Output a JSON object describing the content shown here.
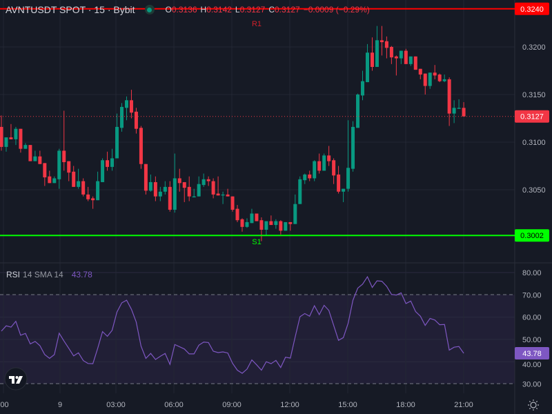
{
  "header": {
    "symbol": "AVNTUSDT SPOT · 15 · Bybit",
    "status_color": "#089981",
    "open_label": "O",
    "open": "0.3136",
    "high_label": "H",
    "high": "0.3142",
    "low_label": "L",
    "low": "0.3127",
    "close_label": "C",
    "close": "0.3127",
    "change": "−0.0009 (−0.29%)"
  },
  "indicator": {
    "name": "RSI",
    "params": "14 SMA 14",
    "value": "43.78"
  },
  "chart_data": [
    {
      "type": "candlestick",
      "interval": "15",
      "up_color": "#089981",
      "down_color": "#f23645",
      "ylim": [
        0.2997,
        0.325
      ],
      "y_ticks": [
        "0.3200",
        "0.3150",
        "0.3100",
        "0.3050"
      ],
      "x_ticks": [
        ":00",
        "9",
        "03:00",
        "06:00",
        "09:00",
        "12:00",
        "15:00",
        "18:00",
        "21:00"
      ],
      "grid": true,
      "last_price": {
        "value": 0.3127,
        "label": "0.3127",
        "color": "#f23645"
      },
      "levels": [
        {
          "name": "R1",
          "value": 0.324,
          "label": "0.3240",
          "color": "#ff0000"
        },
        {
          "name": "S1",
          "value": 0.3002,
          "label": "0.3002",
          "color": "#00ff00"
        }
      ],
      "candles": [
        [
          0.3116,
          0.3128,
          0.3091,
          0.3095
        ],
        [
          0.3095,
          0.3105,
          0.309,
          0.3105
        ],
        [
          0.3105,
          0.3119,
          0.3103,
          0.3103
        ],
        [
          0.3103,
          0.3116,
          0.3097,
          0.3114
        ],
        [
          0.3114,
          0.3114,
          0.3089,
          0.3093
        ],
        [
          0.3093,
          0.3099,
          0.3093,
          0.3097
        ],
        [
          0.3097,
          0.3097,
          0.308,
          0.308
        ],
        [
          0.308,
          0.3091,
          0.308,
          0.3085
        ],
        [
          0.3085,
          0.3091,
          0.3077,
          0.3077
        ],
        [
          0.3078,
          0.3078,
          0.3054,
          0.3063
        ],
        [
          0.3064,
          0.307,
          0.3057,
          0.3057
        ],
        [
          0.3057,
          0.3064,
          0.3057,
          0.3062
        ],
        [
          0.3061,
          0.3093,
          0.3051,
          0.3091
        ],
        [
          0.3091,
          0.3133,
          0.307,
          0.3079
        ],
        [
          0.308,
          0.308,
          0.3059,
          0.3068
        ],
        [
          0.3069,
          0.3075,
          0.3053,
          0.3053
        ],
        [
          0.3053,
          0.3072,
          0.3051,
          0.3059
        ],
        [
          0.3059,
          0.3062,
          0.3043,
          0.3045
        ],
        [
          0.3045,
          0.3053,
          0.3038,
          0.304
        ],
        [
          0.3041,
          0.3043,
          0.303,
          0.3039
        ],
        [
          0.3039,
          0.3069,
          0.3039,
          0.3059
        ],
        [
          0.3058,
          0.3083,
          0.3058,
          0.3081
        ],
        [
          0.3081,
          0.309,
          0.307,
          0.3074
        ],
        [
          0.3074,
          0.3093,
          0.307,
          0.3083
        ],
        [
          0.3083,
          0.313,
          0.3083,
          0.3116
        ],
        [
          0.3115,
          0.3141,
          0.3111,
          0.3137
        ],
        [
          0.3136,
          0.3148,
          0.3123,
          0.3144
        ],
        [
          0.3144,
          0.3155,
          0.3125,
          0.3131
        ],
        [
          0.3132,
          0.3136,
          0.3109,
          0.3114
        ],
        [
          0.3115,
          0.3117,
          0.3072,
          0.3077
        ],
        [
          0.3077,
          0.3077,
          0.3045,
          0.3049
        ],
        [
          0.3049,
          0.3066,
          0.3048,
          0.3058
        ],
        [
          0.3058,
          0.3064,
          0.3038,
          0.3043
        ],
        [
          0.3043,
          0.3053,
          0.3038,
          0.3048
        ],
        [
          0.3048,
          0.3059,
          0.3045,
          0.3053
        ],
        [
          0.3053,
          0.3059,
          0.3027,
          0.3029
        ],
        [
          0.3029,
          0.3088,
          0.3026,
          0.3062
        ],
        [
          0.3062,
          0.3072,
          0.3048,
          0.3057
        ],
        [
          0.3058,
          0.3058,
          0.3037,
          0.3052
        ],
        [
          0.3053,
          0.3064,
          0.3038,
          0.3043
        ],
        [
          0.3042,
          0.3051,
          0.3042,
          0.3043
        ],
        [
          0.3043,
          0.3064,
          0.3043,
          0.3056
        ],
        [
          0.3055,
          0.3067,
          0.3053,
          0.3061
        ],
        [
          0.3061,
          0.3064,
          0.3054,
          0.3059
        ],
        [
          0.3059,
          0.3062,
          0.3041,
          0.3045
        ],
        [
          0.3046,
          0.3064,
          0.3044,
          0.3044
        ],
        [
          0.3044,
          0.3048,
          0.3035,
          0.3045
        ],
        [
          0.3045,
          0.3051,
          0.3043,
          0.3043
        ],
        [
          0.3043,
          0.3043,
          0.3027,
          0.3029
        ],
        [
          0.303,
          0.3034,
          0.3016,
          0.3018
        ],
        [
          0.3019,
          0.302,
          0.3006,
          0.3011
        ],
        [
          0.3011,
          0.302,
          0.301,
          0.3016
        ],
        [
          0.3015,
          0.303,
          0.3015,
          0.3025
        ],
        [
          0.3025,
          0.3025,
          0.3017,
          0.3017
        ],
        [
          0.3018,
          0.3021,
          0.2996,
          0.3008
        ],
        [
          0.3008,
          0.3017,
          0.3002,
          0.3017
        ],
        [
          0.3017,
          0.3023,
          0.3013,
          0.3013
        ],
        [
          0.3013,
          0.3019,
          0.3009,
          0.3017
        ],
        [
          0.3017,
          0.3018,
          0.3003,
          0.3007
        ],
        [
          0.3007,
          0.3016,
          0.3007,
          0.3016
        ],
        [
          0.3016,
          0.3016,
          0.3007,
          0.3014
        ],
        [
          0.3014,
          0.3045,
          0.3014,
          0.3035
        ],
        [
          0.3035,
          0.3064,
          0.3035,
          0.3061
        ],
        [
          0.306,
          0.3067,
          0.3056,
          0.3066
        ],
        [
          0.3066,
          0.307,
          0.3059,
          0.3062
        ],
        [
          0.3062,
          0.3081,
          0.3059,
          0.308
        ],
        [
          0.308,
          0.3088,
          0.3067,
          0.307
        ],
        [
          0.307,
          0.3088,
          0.307,
          0.3086
        ],
        [
          0.3086,
          0.3096,
          0.3075,
          0.308
        ],
        [
          0.3081,
          0.3083,
          0.3056,
          0.3065
        ],
        [
          0.3066,
          0.3075,
          0.3046,
          0.3048
        ],
        [
          0.3048,
          0.3051,
          0.3037,
          0.3051
        ],
        [
          0.3051,
          0.3123,
          0.3048,
          0.3073
        ],
        [
          0.3072,
          0.3122,
          0.3069,
          0.3116
        ],
        [
          0.3115,
          0.3151,
          0.3115,
          0.315
        ],
        [
          0.3149,
          0.3175,
          0.3144,
          0.3164
        ],
        [
          0.3163,
          0.3203,
          0.3163,
          0.3194
        ],
        [
          0.3194,
          0.321,
          0.3175,
          0.3179
        ],
        [
          0.3179,
          0.3222,
          0.3179,
          0.3207
        ],
        [
          0.3207,
          0.3222,
          0.3191,
          0.3205
        ],
        [
          0.3206,
          0.3211,
          0.3188,
          0.3199
        ],
        [
          0.32,
          0.3201,
          0.3182,
          0.3189
        ],
        [
          0.319,
          0.3191,
          0.317,
          0.3188
        ],
        [
          0.3188,
          0.3196,
          0.3182,
          0.3196
        ],
        [
          0.3196,
          0.3198,
          0.3182,
          0.3182
        ],
        [
          0.3182,
          0.319,
          0.318,
          0.319
        ],
        [
          0.319,
          0.319,
          0.3176,
          0.3176
        ],
        [
          0.3177,
          0.3177,
          0.3166,
          0.3171
        ],
        [
          0.3172,
          0.3172,
          0.315,
          0.3159
        ],
        [
          0.3159,
          0.3173,
          0.3156,
          0.3173
        ],
        [
          0.3173,
          0.3181,
          0.3166,
          0.317
        ],
        [
          0.3171,
          0.3172,
          0.3163,
          0.3164
        ],
        [
          0.3164,
          0.3171,
          0.3163,
          0.3166
        ],
        [
          0.3166,
          0.3168,
          0.3117,
          0.313
        ],
        [
          0.313,
          0.3144,
          0.312,
          0.3136
        ],
        [
          0.3135,
          0.3145,
          0.3135,
          0.3136
        ],
        [
          0.3136,
          0.3142,
          0.3127,
          0.3127
        ]
      ]
    },
    {
      "type": "line",
      "name": "RSI",
      "color": "#7e57c2",
      "ylim": [
        25,
        85
      ],
      "y_ticks": [
        "80.00",
        "70.00",
        "60.00",
        "50.00",
        "40.00",
        "30.00"
      ],
      "band": [
        30,
        70
      ],
      "last_value_label": "43.78",
      "values": [
        53.7,
        56.1,
        55.5,
        58.1,
        51.9,
        52.7,
        48.0,
        49.1,
        47.2,
        43.2,
        41.5,
        43.2,
        52.8,
        49.3,
        46.0,
        42.6,
        44.0,
        40.5,
        39.2,
        39.1,
        46.0,
        53.5,
        51.4,
        54.1,
        62.3,
        66.4,
        67.6,
        63.5,
        57.8,
        47.0,
        41.5,
        43.7,
        41.0,
        42.4,
        43.7,
        38.8,
        47.7,
        46.7,
        45.7,
        43.5,
        43.5,
        47.4,
        48.8,
        48.6,
        44.7,
        44.1,
        44.4,
        43.9,
        39.3,
        36.2,
        34.8,
        36.7,
        40.8,
        38.6,
        36.2,
        40.0,
        39.1,
        40.6,
        37.4,
        42.0,
        41.6,
        51.1,
        60.2,
        61.6,
        60.4,
        65.1,
        61.1,
        65.3,
        63.0,
        56.3,
        49.6,
        50.8,
        57.3,
        67.6,
        73.0,
        74.8,
        78.1,
        73.3,
        76.3,
        76.1,
        73.8,
        70.2,
        69.9,
        70.9,
        66.1,
        67.2,
        62.5,
        60.4,
        56.3,
        59.4,
        58.7,
        56.6,
        56.7,
        45.2,
        46.5,
        46.8,
        43.78
      ]
    }
  ]
}
